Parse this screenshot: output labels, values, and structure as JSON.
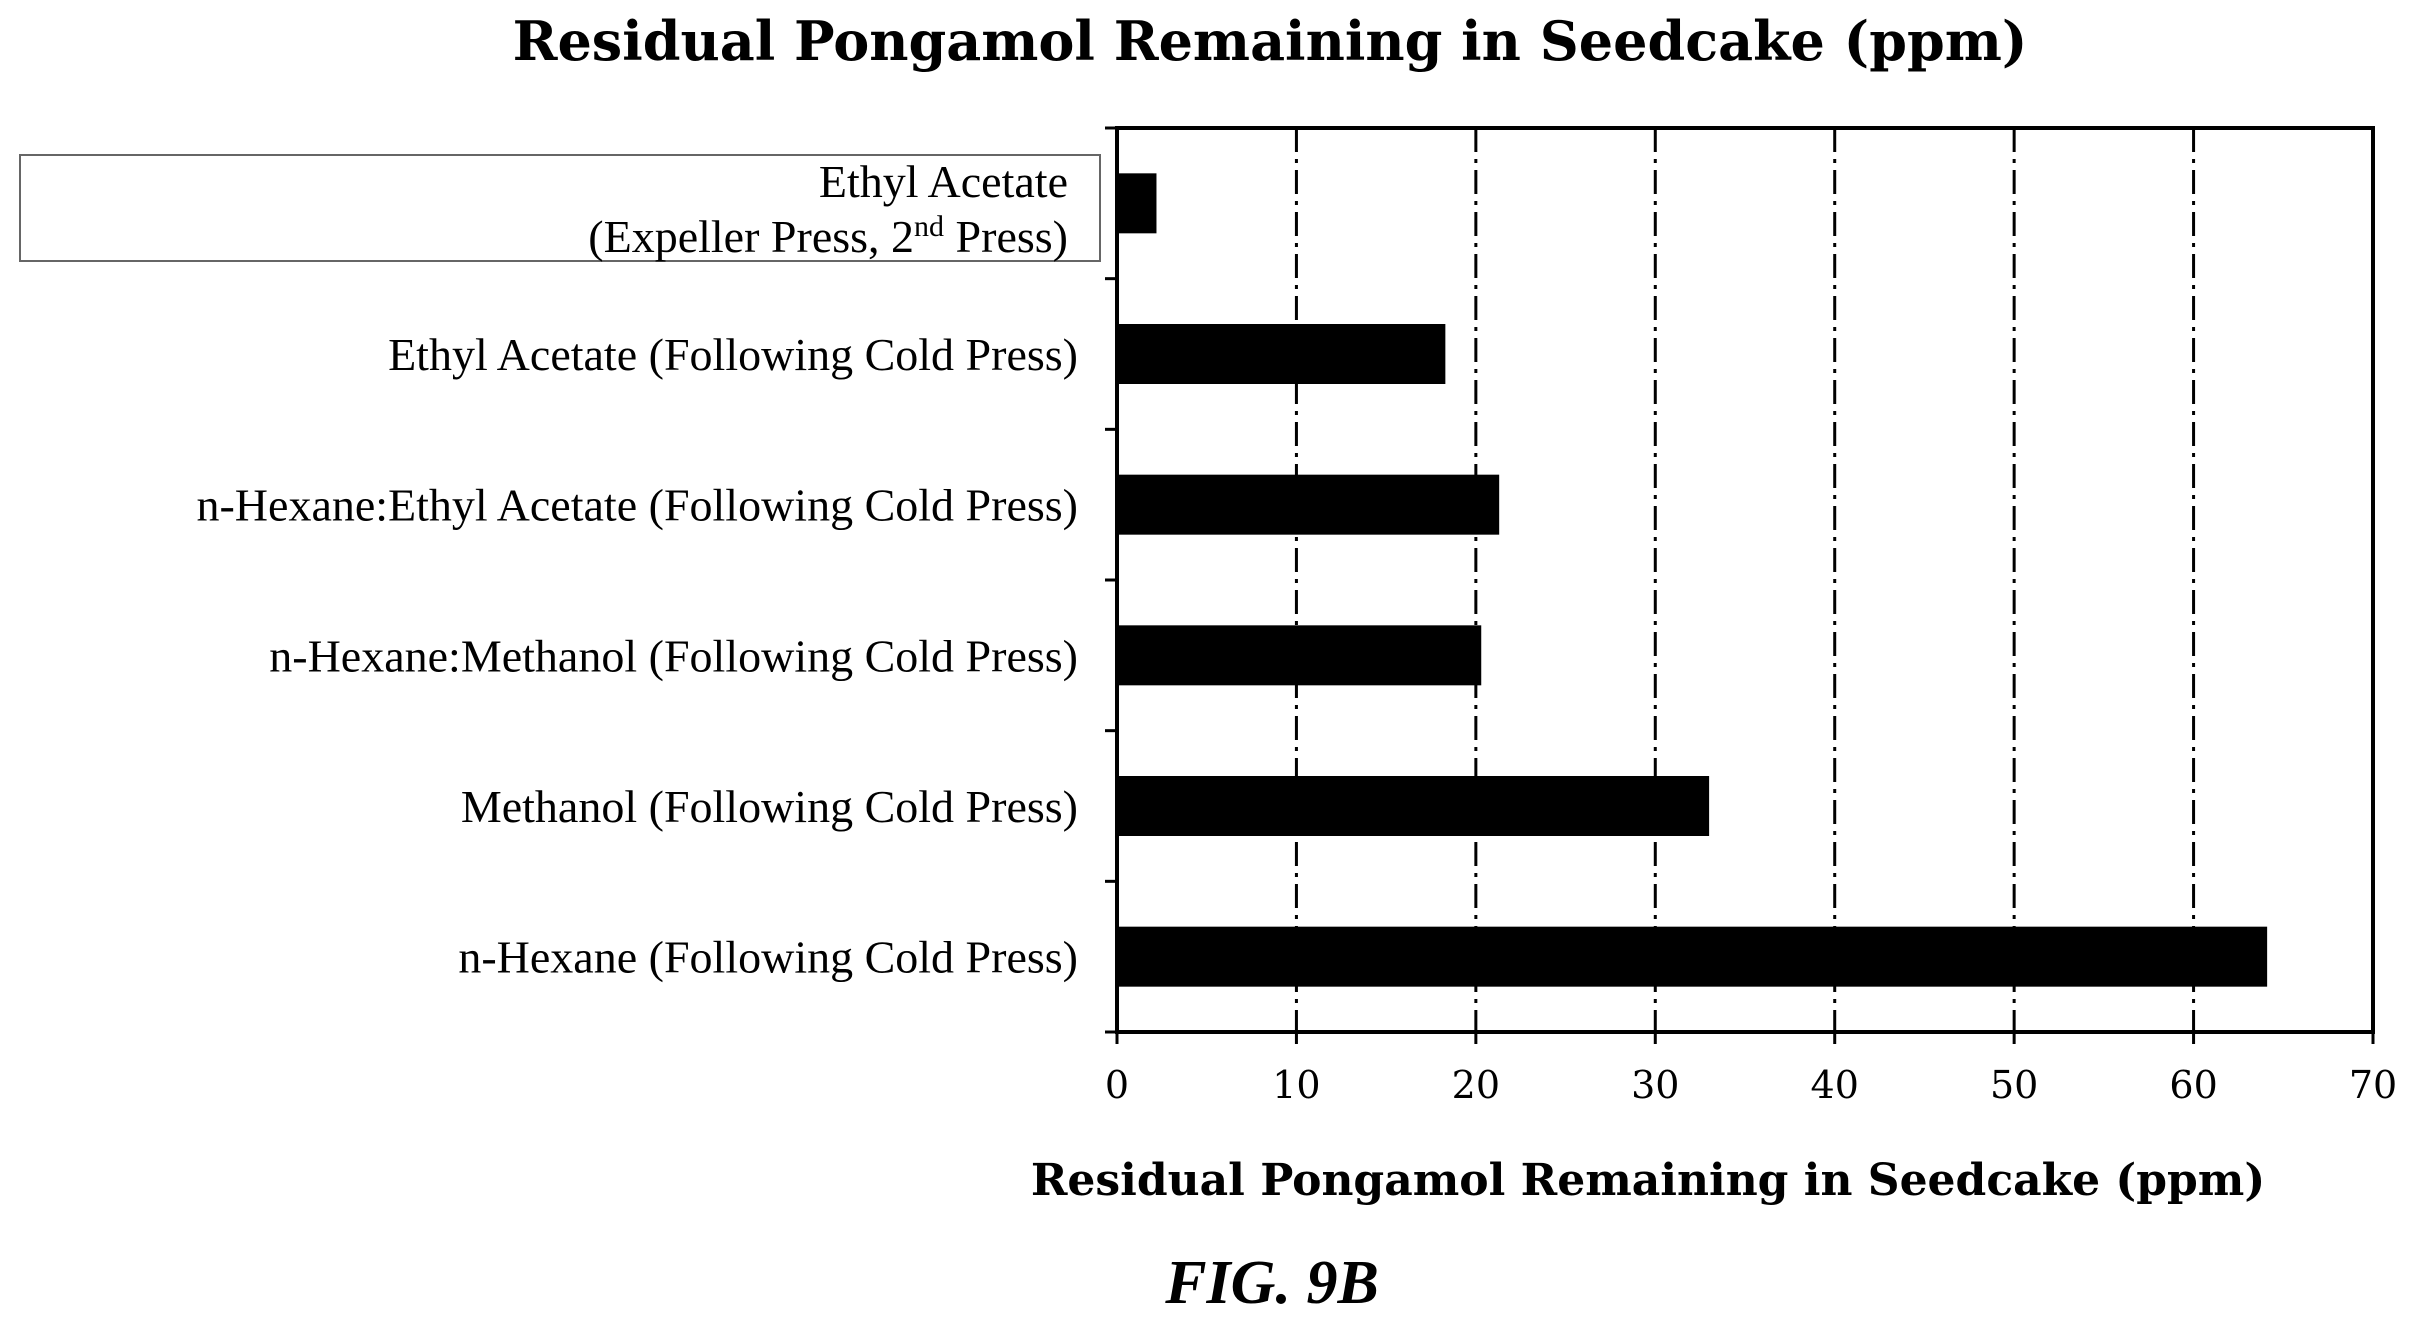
{
  "chart_data": {
    "type": "bar",
    "orientation": "horizontal",
    "title": "Residual Pongamol Remaining in Seedcake (ppm)",
    "xlabel": "Residual Pongamol Remaining in Seedcake (ppm)",
    "ylabel": "",
    "xlim": [
      0,
      70
    ],
    "xticks": [
      "0",
      "10",
      "20",
      "30",
      "40",
      "50",
      "60",
      "70"
    ],
    "grid": "vertical dash-dot at major ticks",
    "categories": [
      {
        "lines": [
          "Ethyl Acetate",
          "(Expeller Press, 2",
          "nd",
          " Press)"
        ],
        "boxed": true
      },
      {
        "lines": [
          "Ethyl Acetate (Following Cold Press)"
        ]
      },
      {
        "lines": [
          "n-Hexane:Ethyl Acetate (Following Cold Press)"
        ]
      },
      {
        "lines": [
          "n-Hexane:Methanol (Following Cold Press)"
        ]
      },
      {
        "lines": [
          "Methanol (Following Cold Press)"
        ]
      },
      {
        "lines": [
          "n-Hexane (Following Cold Press)"
        ]
      }
    ],
    "values": [
      2.2,
      18.3,
      21.3,
      20.3,
      33.0,
      64.1
    ],
    "bar_color": "#000000"
  },
  "figure_label": "FIG. 9B"
}
